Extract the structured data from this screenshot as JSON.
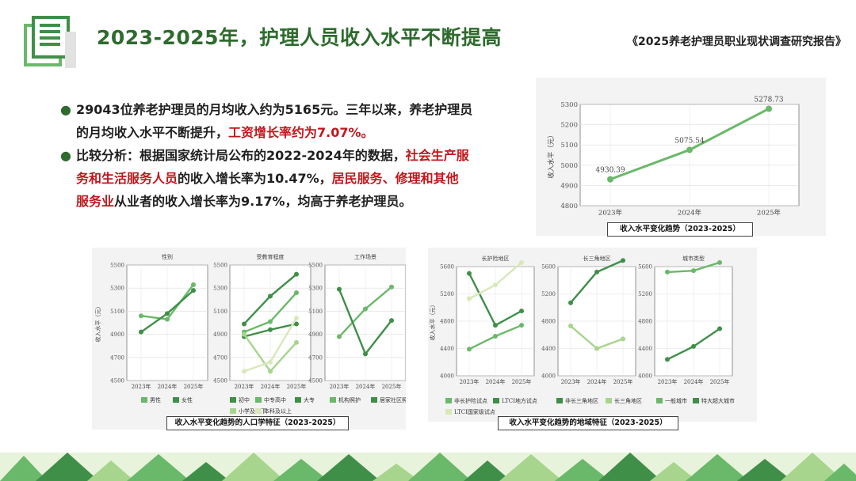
{
  "header": {
    "title": "2023-2025年，护理人员收入水平不断提高",
    "report_name": "《2025养老护理员职业现状调查研究报告》"
  },
  "bullets": [
    {
      "line1_a": "29043位养老护理员的月均收入约为5165元。三年以来，养老护理员",
      "line2_a": "的月均收入水平不断提升，",
      "line2_red": "工资增长率约为7.07%。"
    },
    {
      "line1_a": "比较分析：根据国家统计局公布的2022-2024年的数据，",
      "line1_red": "社会生产服",
      "line2_red": "务和生活服务人员",
      "line2_b": "的收入增长率为10.47%，",
      "line2_red2": "居民服务、修理和其他",
      "line3_red": "服务业",
      "line3_b": "从业者的收入增长率为9.17%，均高于养老护理员。"
    }
  ],
  "captions": {
    "main": "收入水平变化趋势（2023-2025）",
    "demo": "收入水平变化趋势的人口学特征（2023-2025）",
    "region": "收入水平变化趋势的地域特征（2023-2025）"
  },
  "colors": {
    "dark": "#3f8f48",
    "mid": "#6ab86a",
    "light": "#a7d58d",
    "pale": "#d9e8b8",
    "title": "#2e6b2e",
    "red": "#c0171c"
  },
  "chart_data": [
    {
      "id": "main",
      "type": "line",
      "x": [
        "2023年",
        "2024年",
        "2025年"
      ],
      "ylabel": "收入水平（元）",
      "ylim": [
        4800,
        5300
      ],
      "yticks": [
        4800,
        4900,
        5000,
        5100,
        5200,
        5300
      ],
      "series": [
        {
          "values": [
            4930.39,
            5075.54,
            5278.73
          ],
          "labels": [
            "4930.39",
            "5075.54",
            "5278.73"
          ],
          "color": "mid"
        }
      ]
    },
    {
      "id": "gender",
      "type": "line",
      "title": "性别",
      "x": [
        "2023年",
        "2024年",
        "2025年"
      ],
      "ylabel": "收入水平（元）",
      "ylim": [
        4500,
        5500
      ],
      "yticks": [
        4500,
        4700,
        4900,
        5100,
        5300,
        5500
      ],
      "series": [
        {
          "name": "男性",
          "values": [
            5060,
            5030,
            5330
          ],
          "color": "mid"
        },
        {
          "name": "女性",
          "values": [
            4920,
            5080,
            5280
          ],
          "color": "dark"
        }
      ]
    },
    {
      "id": "education",
      "type": "line",
      "title": "受教育程度",
      "x": [
        "2023年",
        "2024年",
        "2025年"
      ],
      "ylim": [
        4500,
        5500
      ],
      "yticks": [
        4500,
        4700,
        4900,
        5100,
        5300,
        5500
      ],
      "series": [
        {
          "name": "初中",
          "values": [
            4990,
            5230,
            5420
          ],
          "color": "dark"
        },
        {
          "name": "中专高中",
          "values": [
            4920,
            5010,
            5260
          ],
          "color": "mid"
        },
        {
          "name": "大专",
          "values": [
            4880,
            4940,
            4990
          ],
          "color": "dark"
        },
        {
          "name": "小学及以下",
          "values": [
            4900,
            4580,
            4830
          ],
          "color": "light"
        },
        {
          "name": "本科及以上",
          "values": [
            4580,
            4660,
            5040
          ],
          "color": "pale"
        }
      ]
    },
    {
      "id": "workplace",
      "type": "line",
      "title": "工作场景",
      "x": [
        "2023年",
        "2024年",
        "2025年"
      ],
      "ylim": [
        4500,
        5500
      ],
      "yticks": [
        4500,
        4700,
        4900,
        5100,
        5300,
        5500
      ],
      "series": [
        {
          "name": "机构照护",
          "values": [
            4880,
            5120,
            5310
          ],
          "color": "mid"
        },
        {
          "name": "居家社区照护",
          "values": [
            5290,
            4730,
            5020
          ],
          "color": "dark"
        }
      ]
    },
    {
      "id": "ltc",
      "type": "line",
      "title": "长护险地区",
      "x": [
        "2023年",
        "2024年",
        "2025年"
      ],
      "ylabel": "收入水平（元）",
      "ylim": [
        4000,
        5600
      ],
      "yticks": [
        4000,
        4400,
        4800,
        5200,
        5600
      ],
      "series": [
        {
          "name": "非长护险试点",
          "values": [
            4390,
            4580,
            4740
          ],
          "color": "mid"
        },
        {
          "name": "LTCI地方试点",
          "values": [
            5500,
            4740,
            4950
          ],
          "color": "dark"
        },
        {
          "name": "LTCI国家级试点",
          "values": [
            5130,
            5330,
            5660
          ],
          "color": "pale"
        }
      ]
    },
    {
      "id": "yangtze",
      "type": "line",
      "title": "长三角地区",
      "x": [
        "2023年",
        "2024年",
        "2025年"
      ],
      "ylim": [
        4000,
        5600
      ],
      "yticks": [
        4000,
        4400,
        4800,
        5200,
        5600
      ],
      "series": [
        {
          "name": "非长三角地区",
          "values": [
            5070,
            5520,
            5690
          ],
          "color": "dark"
        },
        {
          "name": "长三角地区",
          "values": [
            4730,
            4400,
            4540
          ],
          "color": "light"
        }
      ]
    },
    {
      "id": "city",
      "type": "line",
      "title": "城市类型",
      "x": [
        "2023年",
        "2024年",
        "2025年"
      ],
      "ylim": [
        4000,
        5600
      ],
      "yticks": [
        4000,
        4400,
        4800,
        5200,
        5600
      ],
      "series": [
        {
          "name": "一般城市",
          "values": [
            5520,
            5540,
            5660
          ],
          "color": "mid"
        },
        {
          "name": "特大超大城市",
          "values": [
            4240,
            4430,
            4690
          ],
          "color": "dark"
        }
      ]
    }
  ]
}
